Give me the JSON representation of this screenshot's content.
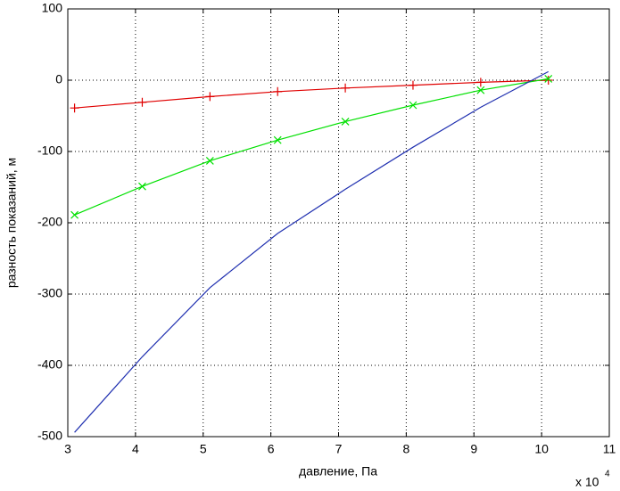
{
  "chart_data": {
    "type": "line",
    "xlabel": "давление, Па",
    "ylabel": "разность показаний, м",
    "x_multiplier": "x 10",
    "x_multiplier_exponent": "4",
    "x": [
      3.1,
      4.1,
      5.1,
      6.1,
      7.1,
      8.1,
      9.1,
      10.1
    ],
    "series": [
      {
        "color": "#e00000",
        "marker": "+",
        "values": [
          -39,
          -31,
          -23,
          -16,
          -11,
          -7,
          -3,
          0
        ]
      },
      {
        "color": "#00e000",
        "marker": "x",
        "values": [
          -189,
          -149,
          -113,
          -84,
          -58,
          -35,
          -14,
          2
        ]
      },
      {
        "color": "#2030b0",
        "marker": "none",
        "values": [
          -494,
          -388,
          -291,
          -215,
          -153,
          -94,
          -38,
          12
        ]
      }
    ],
    "xlim": [
      3,
      11
    ],
    "xticks": [
      3,
      4,
      5,
      6,
      7,
      8,
      9,
      10,
      11
    ],
    "ylim": [
      -500,
      100
    ],
    "yticks": [
      -500,
      -400,
      -300,
      -200,
      -100,
      0,
      100
    ],
    "grid": true
  }
}
